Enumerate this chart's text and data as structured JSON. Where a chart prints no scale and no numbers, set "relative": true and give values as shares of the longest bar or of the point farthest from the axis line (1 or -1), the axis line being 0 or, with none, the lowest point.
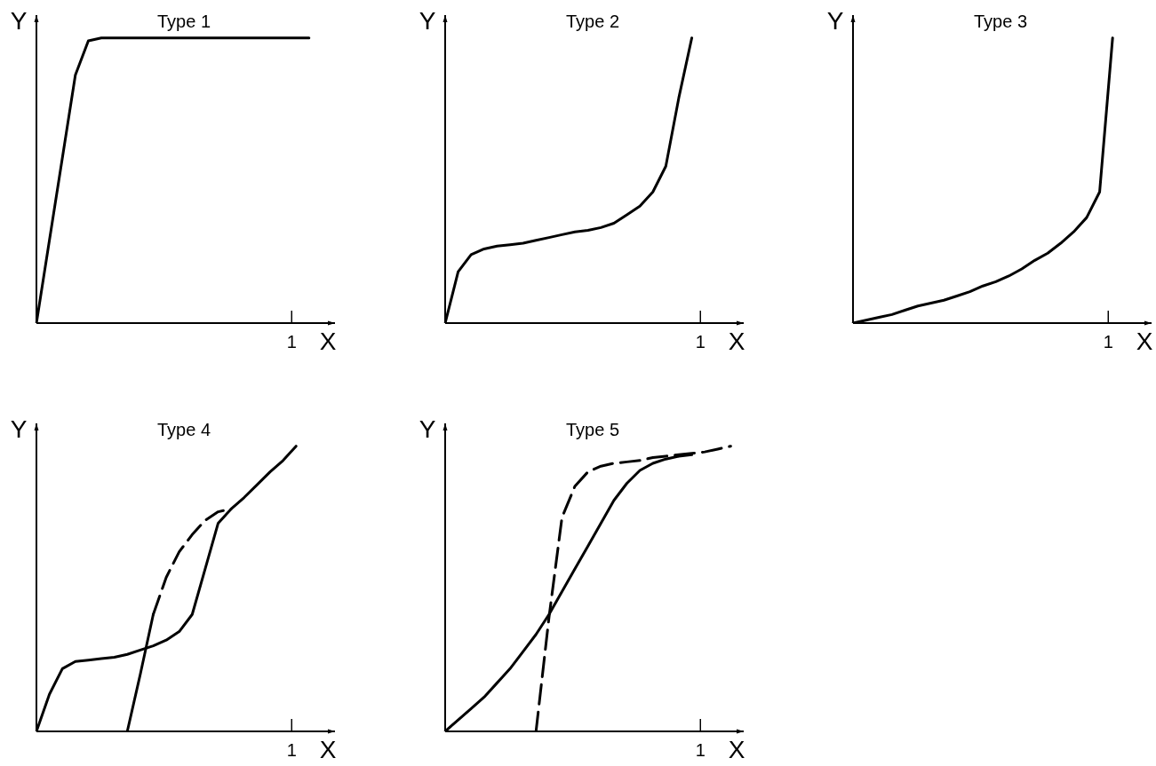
{
  "chart_data": [
    {
      "type": "line",
      "title": "Type 1",
      "xlabel": "X",
      "ylabel": "Y",
      "relative": true,
      "annotations": [
        "1"
      ],
      "categories": [
        null,
        null,
        null,
        null,
        null,
        null,
        null,
        null,
        null,
        null,
        null,
        null,
        null,
        null,
        null,
        null,
        null,
        null,
        null,
        null,
        null,
        null,
        null,
        null
      ],
      "series": [
        {
          "color": "#000000",
          "values": [
            0,
            0.29,
            0.58,
            0.87,
            0.99,
            1,
            1,
            1,
            1,
            1,
            1,
            1,
            1,
            1,
            1,
            1,
            1,
            1,
            1,
            1,
            1,
            1,
            null,
            null
          ]
        }
      ]
    },
    {
      "type": "line",
      "title": "Type 2",
      "xlabel": "X",
      "ylabel": "Y",
      "relative": true,
      "annotations": [
        "1"
      ],
      "categories": [
        null,
        null,
        null,
        null,
        null,
        null,
        null,
        null,
        null,
        null,
        null,
        null,
        null,
        null,
        null,
        null,
        null,
        null,
        null,
        null,
        null,
        null,
        null,
        null
      ],
      "series": [
        {
          "color": "#000000",
          "values": [
            0,
            0.18,
            0.24,
            0.26,
            0.27,
            0.275,
            0.28,
            0.29,
            0.3,
            0.31,
            0.32,
            0.325,
            0.335,
            0.35,
            0.38,
            0.41,
            0.46,
            0.55,
            0.79,
            1,
            null,
            null,
            null,
            null
          ]
        }
      ]
    },
    {
      "type": "line",
      "title": "Type 3",
      "xlabel": "X",
      "ylabel": "Y",
      "relative": true,
      "annotations": [
        "1"
      ],
      "categories": [
        null,
        null,
        null,
        null,
        null,
        null,
        null,
        null,
        null,
        null,
        null,
        null,
        null,
        null,
        null,
        null,
        null,
        null,
        null,
        null,
        null,
        null,
        null,
        null
      ],
      "series": [
        {
          "color": "#000000",
          "values": [
            0,
            0.01,
            0.02,
            0.03,
            0.045,
            0.06,
            0.07,
            0.08,
            0.095,
            0.11,
            0.13,
            0.145,
            0.165,
            0.19,
            0.22,
            0.245,
            0.28,
            0.32,
            0.37,
            0.46,
            1,
            null,
            null,
            null
          ]
        }
      ]
    },
    {
      "type": "line",
      "title": "Type 4",
      "xlabel": "X",
      "ylabel": "Y",
      "relative": true,
      "annotations": [
        "1"
      ],
      "categories": [
        null,
        null,
        null,
        null,
        null,
        null,
        null,
        null,
        null,
        null,
        null,
        null,
        null,
        null,
        null,
        null,
        null,
        null,
        null,
        null,
        null,
        null,
        null,
        null
      ],
      "series": [
        {
          "color": "#000000",
          "values": [
            0,
            0.13,
            0.22,
            0.245,
            0.25,
            0.255,
            0.26,
            0.27,
            0.285,
            0.3,
            0.32,
            0.35,
            0.41,
            0.57,
            0.73,
            0.78,
            0.82,
            0.865,
            0.91,
            0.95,
            1,
            null,
            null,
            null
          ]
        },
        {
          "color": "#000000",
          "values": [
            null,
            null,
            null,
            null,
            null,
            null,
            null,
            0,
            0.2,
            0.41,
            null,
            null,
            null,
            null,
            null,
            null,
            null,
            null,
            null,
            null,
            null,
            null,
            null,
            null
          ]
        },
        {
          "color": "#000000",
          "line_style": "dashed",
          "values": [
            null,
            null,
            null,
            null,
            null,
            null,
            null,
            null,
            null,
            0.41,
            0.54,
            0.63,
            0.69,
            0.74,
            0.77,
            0.78,
            null,
            null,
            null,
            null,
            null,
            null,
            null,
            null
          ]
        }
      ]
    },
    {
      "type": "line",
      "title": "Type 5",
      "xlabel": "X",
      "ylabel": "Y",
      "relative": true,
      "annotations": [
        "1"
      ],
      "categories": [
        null,
        null,
        null,
        null,
        null,
        null,
        null,
        null,
        null,
        null,
        null,
        null,
        null,
        null,
        null,
        null,
        null,
        null,
        null,
        null,
        null,
        null,
        null,
        null
      ],
      "series": [
        {
          "color": "#000000",
          "values": [
            0,
            0.04,
            0.08,
            0.12,
            0.17,
            0.22,
            0.28,
            0.34,
            0.41,
            0.49,
            0.57,
            0.65,
            0.73,
            0.81,
            0.87,
            0.915,
            0.94,
            0.955,
            0.965,
            0.97,
            null,
            null,
            null,
            null
          ]
        },
        {
          "color": "#000000",
          "line_style": "dashed",
          "values": [
            null,
            null,
            null,
            null,
            null,
            null,
            null,
            0,
            0.4,
            0.75,
            0.86,
            0.91,
            0.93,
            0.94,
            0.945,
            0.95,
            0.96,
            0.965,
            0.97,
            0.975,
            0.98,
            0.99,
            1,
            null
          ]
        }
      ]
    }
  ]
}
